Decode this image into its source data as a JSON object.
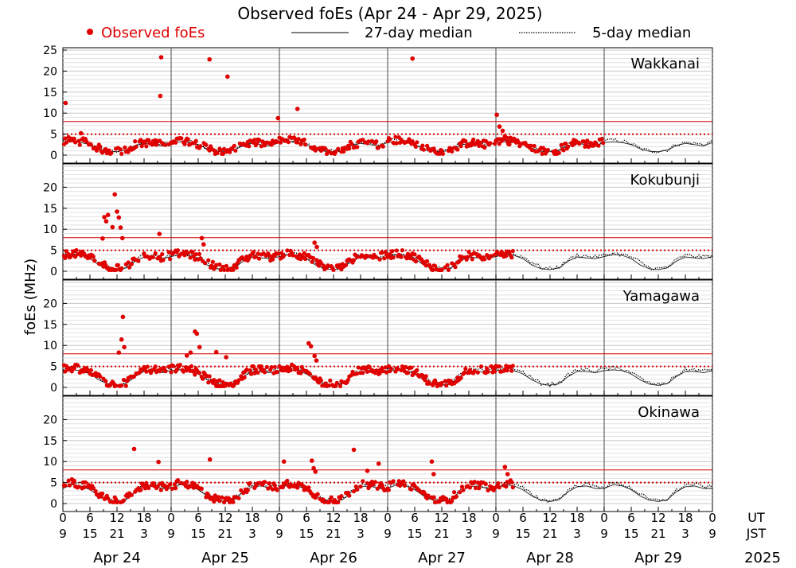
{
  "chart_data": {
    "type": "scatter",
    "title": "Observed foEs (Apr 24 - Apr 29, 2025)",
    "ylabel": "foEs (MHz)",
    "legend": {
      "placement": "top",
      "entries": [
        {
          "label": "Observed foEs",
          "style": "red-dot",
          "color": "#e00000"
        },
        {
          "label": "27-day median",
          "style": "solid-line",
          "color": "#333333"
        },
        {
          "label": "5-day median",
          "style": "dotted-line",
          "color": "#000000"
        }
      ]
    },
    "ylim": [
      0,
      25
    ],
    "yticks_top_panel": [
      "0",
      "5",
      "10",
      "15",
      "20",
      "25"
    ],
    "yticks_other_panels": [
      "0",
      "5",
      "10",
      "15",
      "20"
    ],
    "grid": true,
    "reference_lines": [
      {
        "value": 8,
        "style": "solid",
        "color": "#e00000"
      },
      {
        "value": 5,
        "style": "dotted",
        "color": "#e00000"
      }
    ],
    "x_ut_ticks": [
      "0",
      "6",
      "12",
      "18",
      "0",
      "6",
      "12",
      "18",
      "0",
      "6",
      "12",
      "18",
      "0",
      "6",
      "12",
      "18",
      "0",
      "6",
      "12",
      "18",
      "0",
      "6",
      "12",
      "18",
      "0"
    ],
    "x_jst_ticks": [
      "9",
      "15",
      "21",
      "3",
      "9",
      "15",
      "21",
      "3",
      "9",
      "15",
      "21",
      "3",
      "9",
      "15",
      "21",
      "3",
      "9",
      "15",
      "21",
      "3",
      "9",
      "15",
      "21",
      "3",
      "9"
    ],
    "ut_label": "UT",
    "jst_label": "JST",
    "days": [
      "Apr 24",
      "Apr 25",
      "Apr 26",
      "Apr 27",
      "Apr 28",
      "Apr 29"
    ],
    "year": "2025",
    "panels": [
      {
        "station": "Wakkanai",
        "observed_until_hour": 120,
        "outliers": [
          [
            0.6,
            12.4
          ],
          [
            4.0,
            5.2
          ],
          [
            21.8,
            23.3
          ],
          [
            21.6,
            14.1
          ],
          [
            32.5,
            22.8
          ],
          [
            36.5,
            18.7
          ],
          [
            47.7,
            8.8
          ],
          [
            52.0,
            11.0
          ],
          [
            77.5,
            23.0
          ],
          [
            96.2,
            9.6
          ],
          [
            96.8,
            6.8
          ],
          [
            97.5,
            5.8
          ],
          [
            98.0,
            4.5
          ],
          [
            98.6,
            3.2
          ]
        ],
        "median_27": [
          3.0,
          3.2,
          3.0,
          2.5,
          1.5,
          0.9,
          0.8,
          1.2,
          2.3,
          2.8,
          2.5,
          2.2
        ],
        "median_5": [
          3.4,
          3.6,
          3.3,
          2.7,
          1.6,
          1.0,
          0.9,
          1.3,
          2.5,
          3.0,
          2.8,
          2.5
        ]
      },
      {
        "station": "Kokubunji",
        "observed_until_hour": 100,
        "outliers": [
          [
            9.2,
            12.9
          ],
          [
            9.6,
            11.9
          ],
          [
            10.0,
            13.4
          ],
          [
            11.0,
            10.5
          ],
          [
            11.5,
            18.3
          ],
          [
            12.0,
            14.2
          ],
          [
            12.4,
            12.8
          ],
          [
            12.8,
            10.4
          ],
          [
            13.2,
            7.9
          ],
          [
            8.8,
            7.8
          ],
          [
            21.4,
            8.9
          ],
          [
            30.8,
            7.9
          ],
          [
            31.2,
            6.4
          ],
          [
            55.8,
            6.8
          ],
          [
            56.3,
            5.8
          ]
        ],
        "median_27": [
          3.5,
          4.0,
          3.8,
          3.0,
          1.5,
          0.6,
          0.4,
          0.8,
          2.4,
          3.4,
          3.2,
          3.0
        ],
        "median_5": [
          3.8,
          4.3,
          4.0,
          3.4,
          2.2,
          0.9,
          0.6,
          1.0,
          2.7,
          3.8,
          3.6,
          3.4
        ]
      },
      {
        "station": "Yamagawa",
        "observed_until_hour": 100,
        "outliers": [
          [
            12.4,
            8.3
          ],
          [
            13.0,
            11.4
          ],
          [
            13.3,
            16.8
          ],
          [
            13.6,
            9.6
          ],
          [
            27.5,
            7.6
          ],
          [
            28.3,
            8.3
          ],
          [
            29.3,
            13.3
          ],
          [
            29.7,
            12.8
          ],
          [
            30.3,
            9.6
          ],
          [
            34.0,
            8.4
          ],
          [
            36.2,
            7.2
          ],
          [
            54.5,
            10.5
          ],
          [
            55.0,
            9.8
          ],
          [
            55.8,
            7.5
          ],
          [
            56.2,
            6.4
          ]
        ],
        "median_27": [
          4.0,
          4.2,
          4.0,
          3.2,
          1.8,
          0.8,
          0.5,
          0.9,
          2.6,
          3.8,
          3.8,
          3.5
        ],
        "median_5": [
          4.4,
          4.6,
          4.4,
          3.6,
          2.2,
          1.0,
          0.7,
          1.1,
          2.9,
          4.2,
          4.2,
          3.9
        ]
      },
      {
        "station": "Okinawa",
        "observed_until_hour": 100,
        "outliers": [
          [
            15.8,
            13.0
          ],
          [
            21.2,
            9.9
          ],
          [
            32.6,
            10.5
          ],
          [
            49.0,
            10.0
          ],
          [
            55.2,
            10.2
          ],
          [
            55.6,
            8.4
          ],
          [
            56.0,
            7.6
          ],
          [
            64.5,
            12.8
          ],
          [
            67.5,
            7.8
          ],
          [
            70.0,
            9.5
          ],
          [
            81.8,
            10.0
          ],
          [
            82.2,
            7.0
          ],
          [
            98.0,
            8.7
          ],
          [
            98.6,
            7.0
          ]
        ],
        "median_27": [
          3.6,
          4.5,
          4.2,
          3.3,
          1.8,
          0.8,
          0.5,
          0.9,
          2.8,
          4.0,
          4.2,
          3.6
        ],
        "median_5": [
          4.0,
          4.9,
          4.6,
          3.7,
          2.2,
          1.0,
          0.7,
          1.1,
          3.1,
          4.4,
          4.6,
          4.0
        ]
      }
    ]
  }
}
